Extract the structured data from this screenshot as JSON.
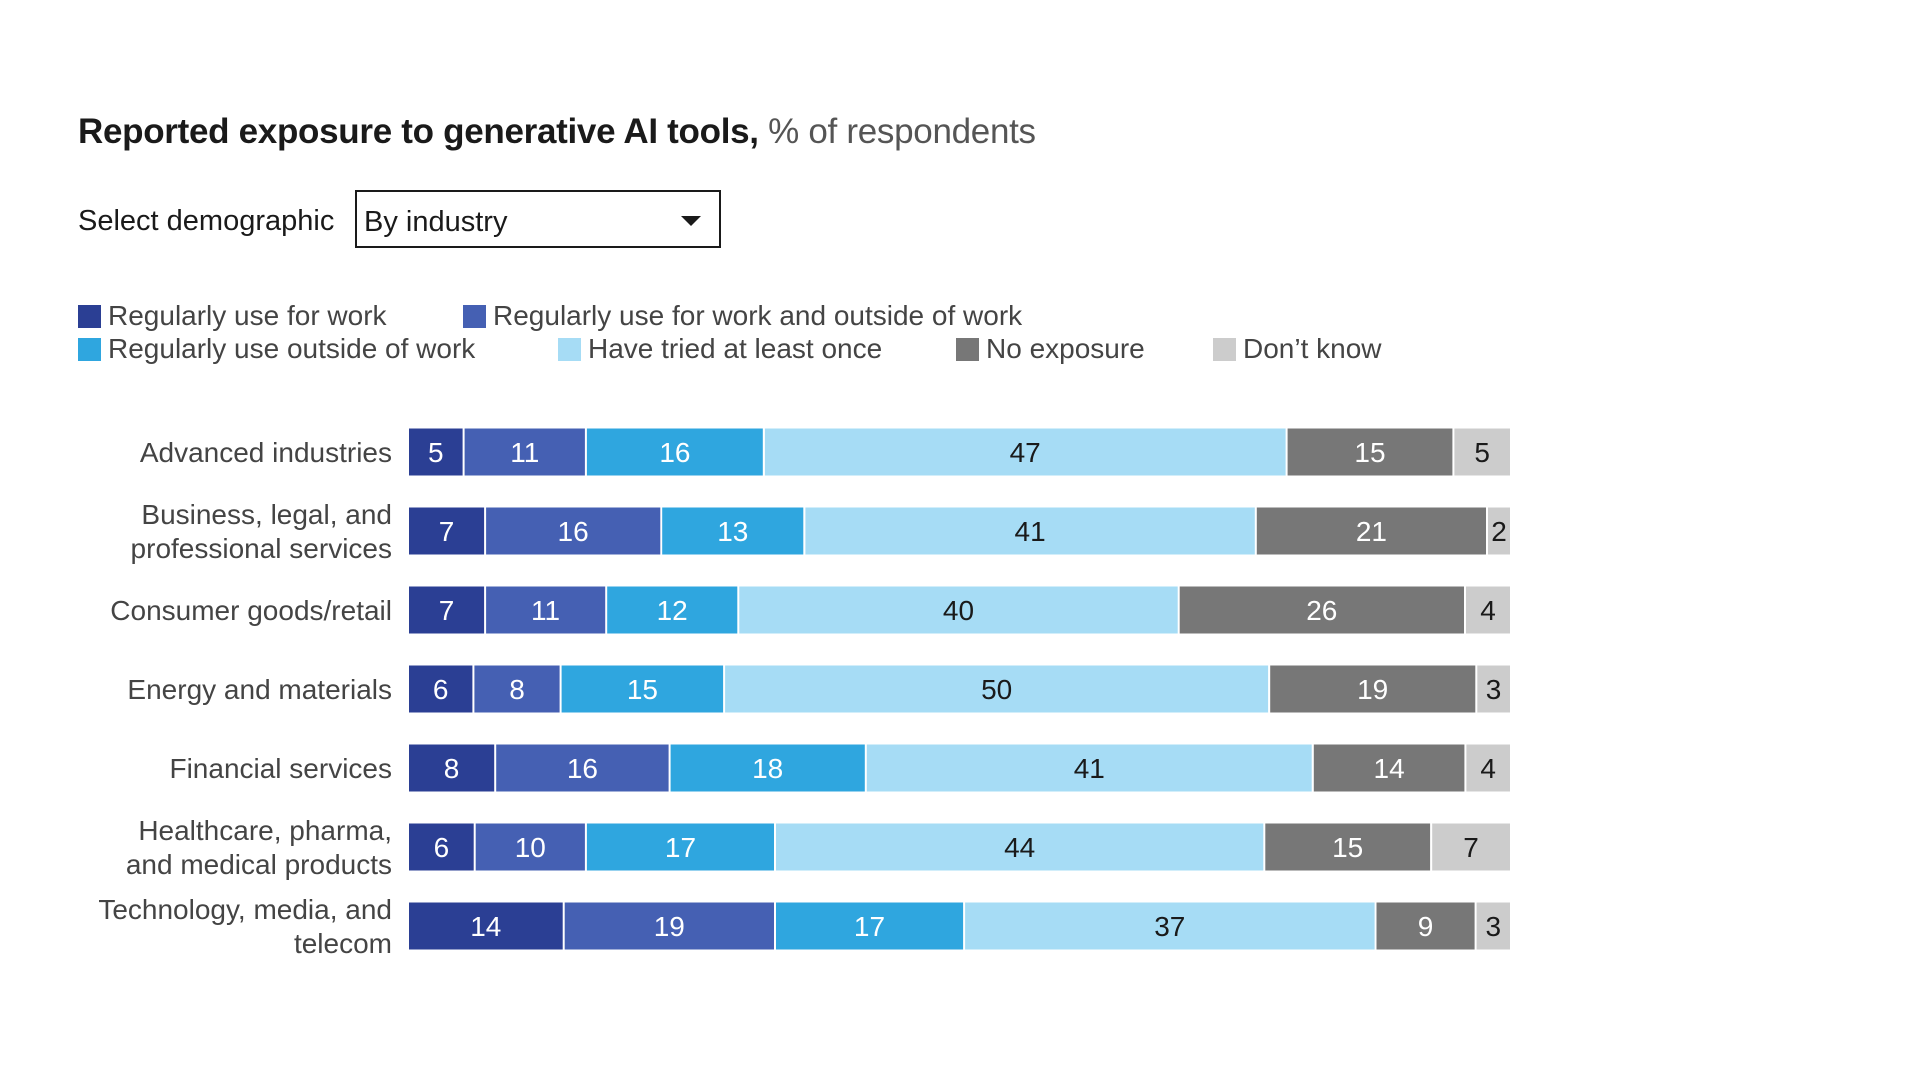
{
  "title": {
    "bold": "Reported exposure to generative AI tools,",
    "light": " % of respondents"
  },
  "selector": {
    "label": "Select demographic",
    "value": "By industry",
    "caret_icon": "chevron-down-icon"
  },
  "colors": {
    "series": [
      "#2b3f94",
      "#4560b3",
      "#2fa6df",
      "#a6dcf5",
      "#777777",
      "#cccccc"
    ],
    "label_text": [
      "#ffffff",
      "#ffffff",
      "#ffffff",
      "#1a1a1a",
      "#ffffff",
      "#1a1a1a"
    ]
  },
  "chart_data": {
    "type": "bar",
    "orientation": "horizontal",
    "stacked": true,
    "title": "Reported exposure to generative AI tools, % of respondents",
    "legend_position": "top-left",
    "categories": [
      [
        "Advanced industries"
      ],
      [
        "Business, legal, and",
        "professional services"
      ],
      [
        "Consumer goods/retail"
      ],
      [
        "Energy and materials"
      ],
      [
        "Financial services"
      ],
      [
        "Healthcare, pharma,",
        "and medical products"
      ],
      [
        "Technology, media, and",
        "telecom"
      ]
    ],
    "series": [
      {
        "name": "Regularly use for work",
        "values": [
          5,
          7,
          7,
          6,
          8,
          6,
          14
        ]
      },
      {
        "name": "Regularly use for work and outside of work",
        "values": [
          11,
          16,
          11,
          8,
          16,
          10,
          19
        ]
      },
      {
        "name": "Regularly use outside of work",
        "values": [
          16,
          13,
          12,
          15,
          18,
          17,
          17
        ]
      },
      {
        "name": "Have tried at least once",
        "values": [
          47,
          41,
          40,
          50,
          41,
          44,
          37
        ]
      },
      {
        "name": "No exposure",
        "values": [
          15,
          21,
          26,
          19,
          14,
          15,
          9
        ]
      },
      {
        "name": "Don’t know",
        "values": [
          5,
          2,
          4,
          3,
          4,
          7,
          3
        ]
      }
    ]
  }
}
